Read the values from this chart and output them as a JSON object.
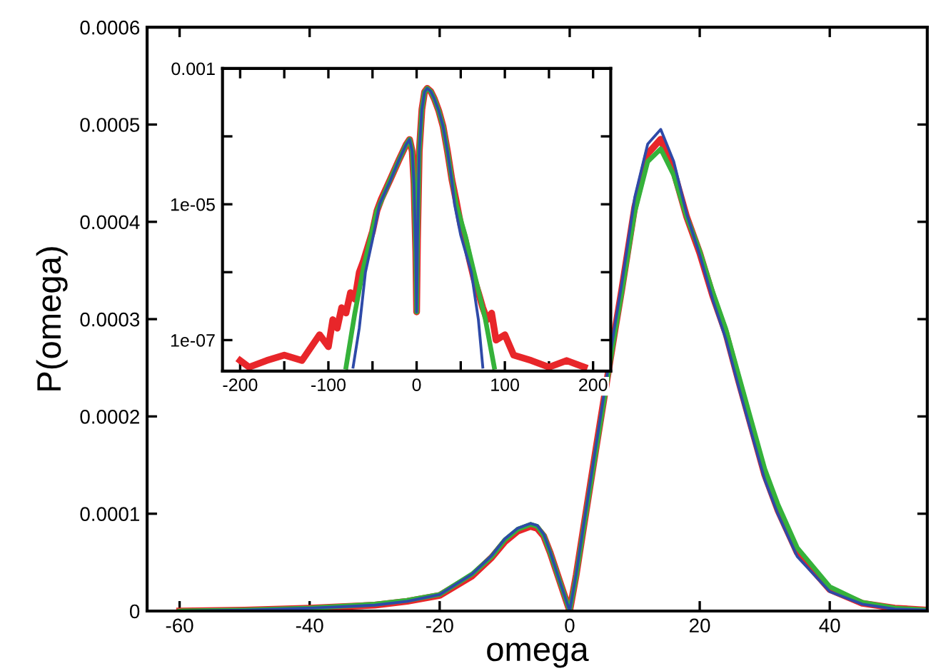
{
  "chart_data": [
    {
      "type": "line",
      "xlabel": "omega",
      "ylabel": "P(omega)",
      "xlim": [
        -65,
        55
      ],
      "ylim": [
        0,
        0.0006
      ],
      "xticks": [
        -60,
        -40,
        -20,
        0,
        20,
        40
      ],
      "yticks": [
        0,
        0.0001,
        0.0002,
        0.0003,
        0.0004,
        0.0005,
        0.0006
      ],
      "x": [
        -60,
        -50,
        -40,
        -30,
        -25,
        -20,
        -15,
        -12,
        -10,
        -8,
        -6,
        -5,
        -4,
        -3,
        -2,
        -1,
        0,
        1,
        2,
        4,
        7,
        8,
        10,
        12,
        14,
        16,
        18,
        20,
        22,
        24,
        26,
        28,
        30,
        32,
        35,
        40,
        45,
        50,
        55
      ],
      "series": [
        {
          "color": "#e8262a",
          "values": [
            0.0,
            1e-06,
            3e-06,
            6e-06,
            1e-05,
            1.6e-05,
            3.6e-05,
            5.5e-05,
            7.1e-05,
            8.2e-05,
            8.7e-05,
            8.5e-05,
            7.7e-05,
            6e-05,
            4e-05,
            2e-05,
            0.0,
            3.7e-05,
            8e-05,
            0.000165,
            0.00029,
            0.00033,
            0.000415,
            0.00047,
            0.000485,
            0.000452,
            0.000405,
            0.000368,
            0.000324,
            0.000286,
            0.000236,
            0.000188,
            0.00014,
            0.000104,
            6e-05,
            2.2e-05,
            8e-06,
            3e-06,
            1e-06
          ]
        },
        {
          "color": "#35b23a",
          "values": [
            0.0,
            1e-06,
            3e-06,
            7e-06,
            1.1e-05,
            1.7e-05,
            3.8e-05,
            5.6e-05,
            7.3e-05,
            8.4e-05,
            8.9e-05,
            8.7e-05,
            7.8e-05,
            6e-05,
            4e-05,
            2e-05,
            0.0,
            3.6e-05,
            7.9e-05,
            0.000163,
            0.000288,
            0.000327,
            0.00041,
            0.000462,
            0.000475,
            0.000448,
            0.000405,
            0.00037,
            0.000328,
            0.00029,
            0.000242,
            0.000194,
            0.000146,
            0.00011,
            6.5e-05,
            2.5e-05,
            9e-06,
            3e-06,
            1e-06
          ]
        },
        {
          "color": "#2e4aa8",
          "values": [
            0.0,
            1e-06,
            3e-06,
            6e-06,
            1e-05,
            1.7e-05,
            3.8e-05,
            5.7e-05,
            7.4e-05,
            8.5e-05,
            9e-05,
            8.8e-05,
            7.9e-05,
            6.1e-05,
            4e-05,
            2e-05,
            0.0,
            3.8e-05,
            8.2e-05,
            0.000168,
            0.000296,
            0.000336,
            0.000425,
            0.00048,
            0.000495,
            0.000462,
            0.000408,
            0.000366,
            0.00032,
            0.00028,
            0.00023,
            0.000182,
            0.000135,
            0.0001,
            5.6e-05,
            2e-05,
            7e-06,
            2e-06,
            1e-06
          ]
        }
      ]
    },
    {
      "type": "line",
      "log": "y",
      "xlim": [
        -220,
        220
      ],
      "ylim": [
        3.5e-08,
        0.001
      ],
      "xticks": [
        -200,
        {
          "value": -150,
          "label": null
        },
        -100,
        {
          "value": -50,
          "label": null
        },
        0,
        {
          "value": 50,
          "label": null
        },
        100,
        {
          "value": 150,
          "label": null
        },
        200
      ],
      "yticks": [
        {
          "value": 1e-07,
          "label": "1e-07"
        },
        {
          "value": 1e-06,
          "label": null
        },
        {
          "value": 1e-05,
          "label": "1e-05"
        },
        {
          "value": 0.0001,
          "label": null
        },
        {
          "value": 0.001,
          "label": "0.001"
        }
      ],
      "series": [
        {
          "color": "#e8262a",
          "x": [
            -200,
            -190,
            -170,
            -150,
            -130,
            -110,
            -100,
            -95,
            -90,
            -85,
            -80,
            -75,
            -70,
            -65,
            -60,
            -50,
            -45,
            -40,
            -30,
            -20,
            -12,
            -8,
            -5,
            -3,
            -1,
            0,
            1,
            3,
            6,
            9,
            12,
            16,
            20,
            25,
            30,
            35,
            40,
            45,
            50,
            55,
            60,
            65,
            70,
            75,
            80,
            85,
            90,
            100,
            110,
            130,
            150,
            170,
            190
          ],
          "values": [
            5e-08,
            4e-08,
            5e-08,
            6e-08,
            5e-08,
            1.2e-07,
            8e-08,
            2e-07,
            1.5e-07,
            3e-07,
            2.5e-07,
            5e-07,
            4e-07,
            1e-06,
            1.5e-06,
            4e-06,
            8e-06,
            1.2e-05,
            2.3e-05,
            4.5e-05,
            7.5e-05,
            9e-05,
            6e-05,
            2e-05,
            2e-06,
            2.6e-07,
            3e-06,
            6e-05,
            0.00025,
            0.00045,
            0.00051,
            0.00046,
            0.00036,
            0.00024,
            0.00014,
            6e-05,
            2.3e-05,
            1.1e-05,
            5e-06,
            3e-06,
            1.5e-06,
            8e-07,
            5e-07,
            3e-07,
            2e-07,
            2.5e-07,
            1e-07,
            1.2e-07,
            6e-08,
            5e-08,
            4e-08,
            5e-08,
            4e-08
          ]
        },
        {
          "color": "#35b23a",
          "x": [
            -80,
            -70,
            -60,
            -45,
            -30,
            -20,
            -12,
            -8,
            -5,
            -3,
            -1,
            0,
            1,
            3,
            6,
            9,
            12,
            16,
            20,
            25,
            30,
            35,
            40,
            45,
            55,
            65,
            78,
            88
          ],
          "values": [
            4e-08,
            2.5e-07,
            1.2e-06,
            8e-06,
            2.3e-05,
            4.5e-05,
            7.5e-05,
            9e-05,
            6e-05,
            2e-05,
            2e-06,
            2.6e-07,
            3e-06,
            6e-05,
            0.00025,
            0.00045,
            0.00051,
            0.00046,
            0.00036,
            0.00024,
            0.00014,
            6e-05,
            2.3e-05,
            1e-05,
            3.5e-06,
            1e-06,
            2e-07,
            4e-08
          ]
        },
        {
          "color": "#2e4aa8",
          "x": [
            -72,
            -65,
            -58,
            -50,
            -42,
            -30,
            -20,
            -12,
            -8,
            -5,
            -3,
            -1,
            0,
            1,
            3,
            6,
            9,
            12,
            16,
            20,
            25,
            30,
            35,
            40,
            43,
            50,
            62,
            70,
            75
          ],
          "values": [
            4e-08,
            1.5e-07,
            1e-06,
            3e-06,
            1e-05,
            2.2e-05,
            4.5e-05,
            7.5e-05,
            9e-05,
            6e-05,
            2e-05,
            2e-06,
            2.6e-07,
            3e-06,
            6e-05,
            0.00025,
            0.00045,
            0.00051,
            0.00046,
            0.00036,
            0.00024,
            0.00014,
            6e-05,
            2.2e-05,
            1e-05,
            3.5e-06,
            1e-06,
            2e-07,
            4e-08
          ]
        }
      ]
    }
  ]
}
